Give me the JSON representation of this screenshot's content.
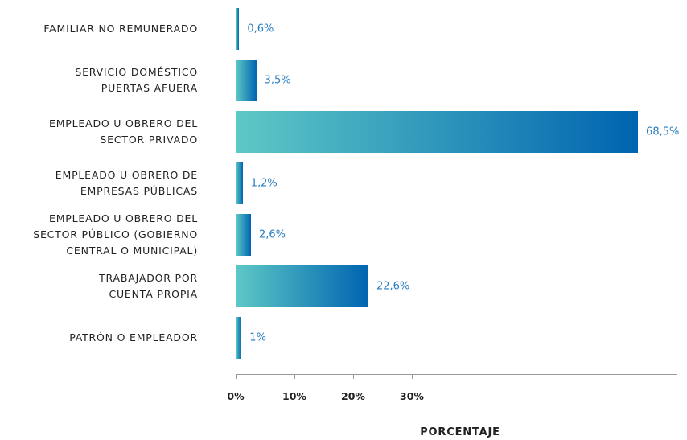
{
  "chart_data": {
    "type": "bar",
    "orientation": "horizontal",
    "x_label": "PORCENTAJE",
    "categories": [
      "FAMILIAR NO REMUNERADO",
      "SERVICIO DOMÉSTICO\nPUERTAS AFUERA",
      "EMPLEADO U OBRERO DEL\nSECTOR PRIVADO",
      "EMPLEADO U OBRERO DE\nEMPRESAS PÚBLICAS",
      "EMPLEADO U OBRERO DEL\nSECTOR PÚBLICO (GOBIERNO\nCENTRAL O MUNICIPAL)",
      "TRABAJADOR POR\nCUENTA PROPIA",
      "PATRÓN O EMPLEADOR"
    ],
    "values": [
      0.6,
      3.5,
      68.5,
      1.2,
      2.6,
      22.6,
      1
    ],
    "value_labels": [
      "0,6%",
      "3,5%",
      "68,5%",
      "1,2%",
      "2,6%",
      "22,6%",
      "1%"
    ],
    "gradient": [
      "#5ec8c6",
      "#0064b0"
    ],
    "label_color": "#2b7ec1",
    "xlim": [
      0,
      75
    ],
    "xticks": [
      {
        "value": 0,
        "label": "0%"
      },
      {
        "value": 10,
        "label": "10%"
      },
      {
        "value": 20,
        "label": "20%"
      },
      {
        "value": 30,
        "label": "30%"
      }
    ]
  }
}
